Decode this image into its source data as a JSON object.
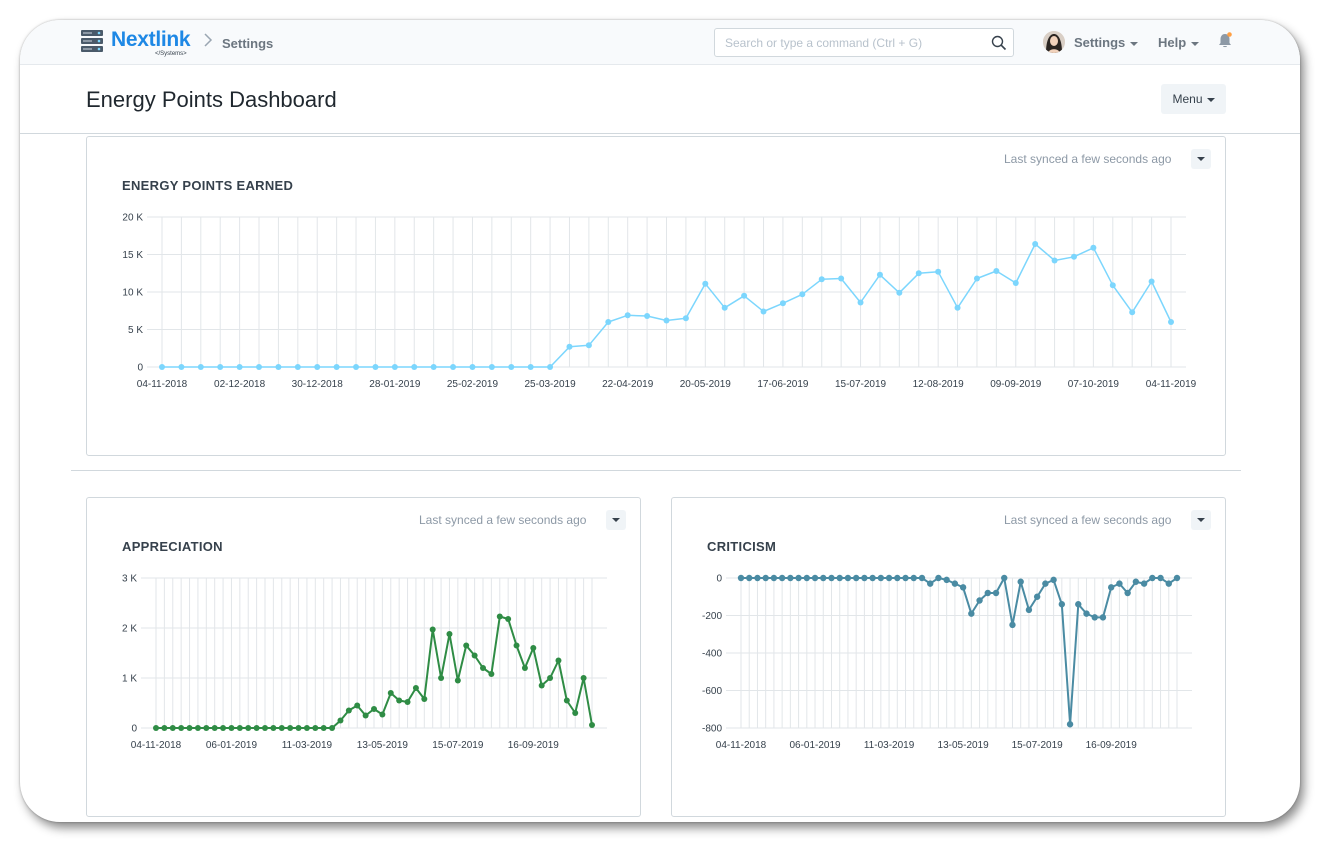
{
  "navbar": {
    "brand": "Nextlink",
    "brand_sub": "</Systems>",
    "breadcrumb": "Settings",
    "search_placeholder": "Search or type a command (Ctrl + G)",
    "settings_label": "Settings",
    "help_label": "Help"
  },
  "page": {
    "title": "Energy Points Dashboard",
    "menu_label": "Menu"
  },
  "cards": {
    "energy": {
      "title": "ENERGY POINTS EARNED",
      "sync": "Last synced a few seconds ago"
    },
    "appreciation": {
      "title": "APPRECIATION",
      "sync": "Last synced a few seconds ago"
    },
    "criticism": {
      "title": "CRITICISM",
      "sync": "Last synced a few seconds ago"
    }
  },
  "colors": {
    "energy": "#7cd6fd",
    "appreciation": "#2f8c45",
    "criticism": "#4a8ba3",
    "brand": "#1e88e5"
  },
  "chart_data": [
    {
      "id": "energy",
      "type": "line",
      "title": "ENERGY POINTS EARNED",
      "ylim": [
        0,
        20000
      ],
      "yticks": [
        0,
        5000,
        10000,
        15000,
        20000
      ],
      "ytick_labels": [
        "0",
        "5 K",
        "10 K",
        "15 K",
        "20 K"
      ],
      "xtick_labels": [
        "04-11-2018",
        "02-12-2018",
        "30-12-2018",
        "28-01-2019",
        "25-02-2019",
        "25-03-2019",
        "22-04-2019",
        "20-05-2019",
        "17-06-2019",
        "15-07-2019",
        "12-08-2019",
        "09-09-2019",
        "07-10-2019",
        "04-11-2019"
      ],
      "xtick_every": 4,
      "values": [
        0,
        0,
        0,
        0,
        0,
        0,
        0,
        0,
        0,
        0,
        0,
        0,
        0,
        0,
        0,
        0,
        0,
        0,
        0,
        0,
        0,
        2700,
        2900,
        6000,
        6900,
        6800,
        6200,
        6500,
        11100,
        7900,
        9500,
        7400,
        8500,
        9700,
        11700,
        11800,
        8600,
        12300,
        9900,
        12500,
        12700,
        7900,
        11800,
        12800,
        11200,
        16400,
        14200,
        14700,
        15900,
        10900,
        7300,
        11400,
        6000
      ]
    },
    {
      "id": "appreciation",
      "type": "line",
      "title": "APPRECIATION",
      "ylim": [
        0,
        3000
      ],
      "yticks": [
        0,
        1000,
        2000,
        3000
      ],
      "ytick_labels": [
        "0",
        "1 K",
        "2 K",
        "3 K"
      ],
      "xtick_labels": [
        "04-11-2018",
        "06-01-2019",
        "11-03-2019",
        "13-05-2019",
        "15-07-2019",
        "16-09-2019"
      ],
      "xtick_every": 9,
      "values": [
        0,
        0,
        0,
        0,
        0,
        0,
        0,
        0,
        0,
        0,
        0,
        0,
        0,
        0,
        0,
        0,
        0,
        0,
        0,
        0,
        0,
        0,
        150,
        350,
        450,
        250,
        380,
        270,
        700,
        550,
        520,
        800,
        580,
        1970,
        1000,
        1880,
        950,
        1650,
        1450,
        1200,
        1080,
        2230,
        2180,
        1650,
        1200,
        1600,
        850,
        1000,
        1350,
        550,
        300,
        1000,
        60
      ]
    },
    {
      "id": "criticism",
      "type": "line",
      "title": "CRITICISM",
      "ylim": [
        -800,
        0
      ],
      "yticks": [
        0,
        -200,
        -400,
        -600,
        -800
      ],
      "ytick_labels": [
        "0",
        "-200",
        "-400",
        "-600",
        "-800"
      ],
      "xtick_labels": [
        "04-11-2018",
        "06-01-2019",
        "11-03-2019",
        "13-05-2019",
        "15-07-2019",
        "16-09-2019"
      ],
      "xtick_every": 9,
      "values": [
        0,
        0,
        0,
        0,
        0,
        0,
        0,
        0,
        0,
        0,
        0,
        0,
        0,
        0,
        0,
        0,
        0,
        0,
        0,
        0,
        0,
        0,
        0,
        -30,
        0,
        -10,
        -30,
        -50,
        -190,
        -120,
        -80,
        -80,
        0,
        -250,
        -20,
        -170,
        -100,
        -30,
        -10,
        -140,
        -780,
        -140,
        -190,
        -210,
        -210,
        -50,
        -30,
        -80,
        -20,
        -30,
        0,
        0,
        -30,
        0
      ]
    }
  ]
}
